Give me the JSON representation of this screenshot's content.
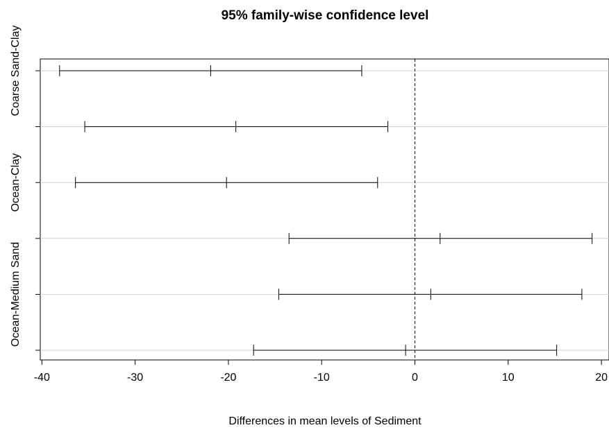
{
  "chart_data": {
    "type": "errorbar",
    "title": "95% family-wise confidence level",
    "xlabel": "Differences in mean levels of Sediment",
    "ylabel": "",
    "xlim": [
      -40.5,
      21
    ],
    "xticks": [
      -40,
      -30,
      -20,
      -10,
      0,
      10,
      20
    ],
    "xtick_labels": [
      "-40",
      "-30",
      "-20",
      "-10",
      "0",
      "10",
      "20"
    ],
    "reference_line_x": 0,
    "grid": "horizontal",
    "categories": [
      "Coarse Sand-Clay",
      "",
      "Ocean-Clay",
      "",
      "Ocean-Medium Sand",
      ""
    ],
    "intervals": [
      {
        "lwr": -38.1,
        "diff": -21.9,
        "upr": -5.7
      },
      {
        "lwr": -35.4,
        "diff": -19.2,
        "upr": -2.9
      },
      {
        "lwr": -36.4,
        "diff": -20.2,
        "upr": -4.0
      },
      {
        "lwr": -13.5,
        "diff": 2.7,
        "upr": 19.0
      },
      {
        "lwr": -14.6,
        "diff": 1.7,
        "upr": 17.9
      },
      {
        "lwr": -17.3,
        "diff": -1.0,
        "upr": 15.2
      }
    ]
  }
}
